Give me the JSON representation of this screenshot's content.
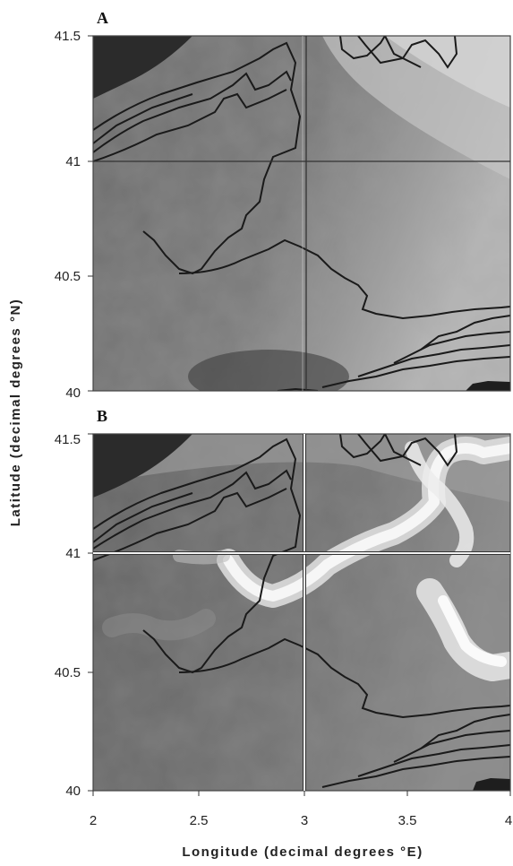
{
  "chart_data": {
    "type": "heatmap",
    "xlabel": "Longitude (decimal degrees °E)",
    "ylabel": "Latitude (decimal degrees °N)",
    "xlim": [
      2,
      4
    ],
    "ylim": [
      40,
      41.5
    ],
    "x_ticks": [
      "2",
      "2.5",
      "3",
      "3.5",
      "4"
    ],
    "y_ticks": [
      "40",
      "40.5",
      "41",
      "41.5"
    ],
    "reference_lines": {
      "longitude": 3,
      "latitude": 41
    },
    "panels": [
      {
        "label": "A",
        "variant": "uniform"
      },
      {
        "label": "B",
        "variant": "front"
      }
    ]
  }
}
